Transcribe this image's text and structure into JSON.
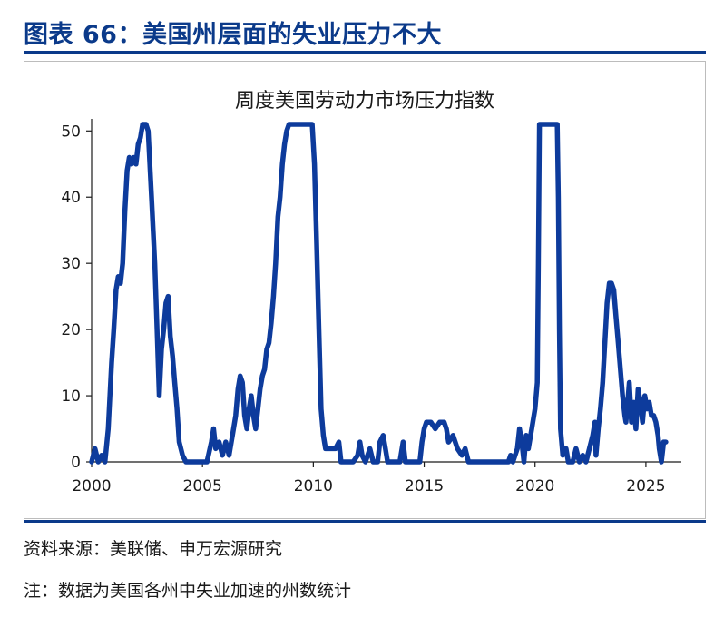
{
  "figure": {
    "title": "图表 66：美国州层面的失业压力不大",
    "source": "资料来源：美联储、申万宏源研究",
    "note": "注：数据为美国各州中失业加速的州数统计"
  },
  "colors": {
    "accent": "#0b3a8a",
    "series": "#0d3b9c",
    "axis": "#1a1a1a",
    "frame": "#bcbcbc"
  },
  "chart_data": {
    "type": "line",
    "title": "周度美国劳动力市场压力指数",
    "xlabel": "",
    "ylabel": "",
    "xlim": [
      2000,
      2026.6
    ],
    "ylim": [
      0,
      51
    ],
    "x_ticks": [
      2000,
      2005,
      2010,
      2015,
      2020,
      2025
    ],
    "y_ticks": [
      0,
      10,
      20,
      30,
      40,
      50
    ],
    "grid": false,
    "legend": "none",
    "series": [
      {
        "name": "",
        "points": [
          [
            2000.0,
            0
          ],
          [
            2000.15,
            2
          ],
          [
            2000.3,
            0
          ],
          [
            2000.45,
            1
          ],
          [
            2000.6,
            0
          ],
          [
            2000.75,
            5
          ],
          [
            2000.9,
            15
          ],
          [
            2001.0,
            20
          ],
          [
            2001.1,
            26
          ],
          [
            2001.2,
            28
          ],
          [
            2001.3,
            27
          ],
          [
            2001.4,
            30
          ],
          [
            2001.5,
            38
          ],
          [
            2001.6,
            44
          ],
          [
            2001.7,
            46
          ],
          [
            2001.8,
            45
          ],
          [
            2001.9,
            46
          ],
          [
            2002.0,
            45
          ],
          [
            2002.1,
            48
          ],
          [
            2002.2,
            49
          ],
          [
            2002.3,
            51
          ],
          [
            2002.45,
            51
          ],
          [
            2002.55,
            50
          ],
          [
            2002.7,
            40
          ],
          [
            2002.85,
            30
          ],
          [
            2002.95,
            20
          ],
          [
            2003.05,
            10
          ],
          [
            2003.15,
            17
          ],
          [
            2003.25,
            20
          ],
          [
            2003.35,
            24
          ],
          [
            2003.45,
            25
          ],
          [
            2003.55,
            19
          ],
          [
            2003.65,
            16
          ],
          [
            2003.75,
            12
          ],
          [
            2003.85,
            8
          ],
          [
            2003.95,
            3
          ],
          [
            2004.1,
            1
          ],
          [
            2004.25,
            0
          ],
          [
            2004.6,
            0
          ],
          [
            2005.0,
            0
          ],
          [
            2005.2,
            0
          ],
          [
            2005.4,
            3
          ],
          [
            2005.5,
            5
          ],
          [
            2005.6,
            2
          ],
          [
            2005.75,
            3
          ],
          [
            2005.9,
            1
          ],
          [
            2006.05,
            3
          ],
          [
            2006.2,
            1
          ],
          [
            2006.35,
            4
          ],
          [
            2006.5,
            7
          ],
          [
            2006.6,
            11
          ],
          [
            2006.7,
            13
          ],
          [
            2006.8,
            12
          ],
          [
            2006.9,
            7
          ],
          [
            2007.0,
            5
          ],
          [
            2007.1,
            8
          ],
          [
            2007.2,
            10
          ],
          [
            2007.3,
            7
          ],
          [
            2007.4,
            5
          ],
          [
            2007.5,
            8
          ],
          [
            2007.6,
            11
          ],
          [
            2007.7,
            13
          ],
          [
            2007.8,
            14
          ],
          [
            2007.9,
            17
          ],
          [
            2008.0,
            18
          ],
          [
            2008.1,
            21
          ],
          [
            2008.2,
            25
          ],
          [
            2008.3,
            30
          ],
          [
            2008.4,
            37
          ],
          [
            2008.5,
            40
          ],
          [
            2008.6,
            45
          ],
          [
            2008.7,
            48
          ],
          [
            2008.8,
            50
          ],
          [
            2008.9,
            51
          ],
          [
            2009.5,
            51
          ],
          [
            2009.95,
            51
          ],
          [
            2010.05,
            45
          ],
          [
            2010.15,
            33
          ],
          [
            2010.25,
            20
          ],
          [
            2010.35,
            8
          ],
          [
            2010.45,
            4
          ],
          [
            2010.55,
            2
          ],
          [
            2010.7,
            2
          ],
          [
            2011.0,
            2
          ],
          [
            2011.15,
            3
          ],
          [
            2011.25,
            0
          ],
          [
            2011.8,
            0
          ],
          [
            2012.0,
            1
          ],
          [
            2012.1,
            3
          ],
          [
            2012.2,
            1
          ],
          [
            2012.35,
            0
          ],
          [
            2012.55,
            2
          ],
          [
            2012.7,
            0
          ],
          [
            2012.9,
            0
          ],
          [
            2013.0,
            3
          ],
          [
            2013.15,
            4
          ],
          [
            2013.25,
            2
          ],
          [
            2013.35,
            0
          ],
          [
            2013.9,
            0
          ],
          [
            2014.05,
            3
          ],
          [
            2014.15,
            0
          ],
          [
            2014.8,
            0
          ],
          [
            2014.9,
            3
          ],
          [
            2015.0,
            5
          ],
          [
            2015.1,
            6
          ],
          [
            2015.3,
            6
          ],
          [
            2015.5,
            5
          ],
          [
            2015.7,
            6
          ],
          [
            2015.9,
            6
          ],
          [
            2016.0,
            5
          ],
          [
            2016.1,
            3
          ],
          [
            2016.3,
            4
          ],
          [
            2016.5,
            2
          ],
          [
            2016.7,
            1
          ],
          [
            2016.85,
            2
          ],
          [
            2017.0,
            0
          ],
          [
            2017.2,
            0
          ],
          [
            2017.5,
            0
          ],
          [
            2018.0,
            0
          ],
          [
            2018.5,
            0
          ],
          [
            2018.8,
            0
          ],
          [
            2018.9,
            1
          ],
          [
            2019.0,
            0
          ],
          [
            2019.2,
            2
          ],
          [
            2019.3,
            5
          ],
          [
            2019.4,
            3
          ],
          [
            2019.5,
            0
          ],
          [
            2019.6,
            4
          ],
          [
            2019.7,
            2
          ],
          [
            2019.85,
            5
          ],
          [
            2020.0,
            8
          ],
          [
            2020.1,
            12
          ],
          [
            2020.15,
            30
          ],
          [
            2020.2,
            51
          ],
          [
            2021.0,
            51
          ],
          [
            2021.05,
            40
          ],
          [
            2021.1,
            20
          ],
          [
            2021.15,
            5
          ],
          [
            2021.25,
            1
          ],
          [
            2021.4,
            2
          ],
          [
            2021.5,
            0
          ],
          [
            2021.7,
            0
          ],
          [
            2021.85,
            2
          ],
          [
            2022.0,
            0
          ],
          [
            2022.15,
            1
          ],
          [
            2022.3,
            0
          ],
          [
            2022.45,
            2
          ],
          [
            2022.6,
            4
          ],
          [
            2022.7,
            6
          ],
          [
            2022.75,
            1
          ],
          [
            2022.85,
            5
          ],
          [
            2022.95,
            8
          ],
          [
            2023.05,
            12
          ],
          [
            2023.15,
            18
          ],
          [
            2023.25,
            24
          ],
          [
            2023.35,
            27
          ],
          [
            2023.45,
            27
          ],
          [
            2023.55,
            26
          ],
          [
            2023.65,
            22
          ],
          [
            2023.75,
            18
          ],
          [
            2023.85,
            14
          ],
          [
            2023.95,
            10
          ],
          [
            2024.05,
            7
          ],
          [
            2024.1,
            6
          ],
          [
            2024.2,
            10
          ],
          [
            2024.25,
            12
          ],
          [
            2024.35,
            6
          ],
          [
            2024.45,
            9
          ],
          [
            2024.55,
            5
          ],
          [
            2024.65,
            11
          ],
          [
            2024.75,
            9
          ],
          [
            2024.85,
            6
          ],
          [
            2024.95,
            10
          ],
          [
            2025.05,
            8
          ],
          [
            2025.15,
            9
          ],
          [
            2025.25,
            7
          ],
          [
            2025.35,
            7
          ],
          [
            2025.45,
            6
          ],
          [
            2025.55,
            4
          ],
          [
            2025.6,
            2
          ],
          [
            2025.7,
            0
          ],
          [
            2025.8,
            3
          ],
          [
            2025.9,
            3
          ]
        ]
      }
    ]
  }
}
